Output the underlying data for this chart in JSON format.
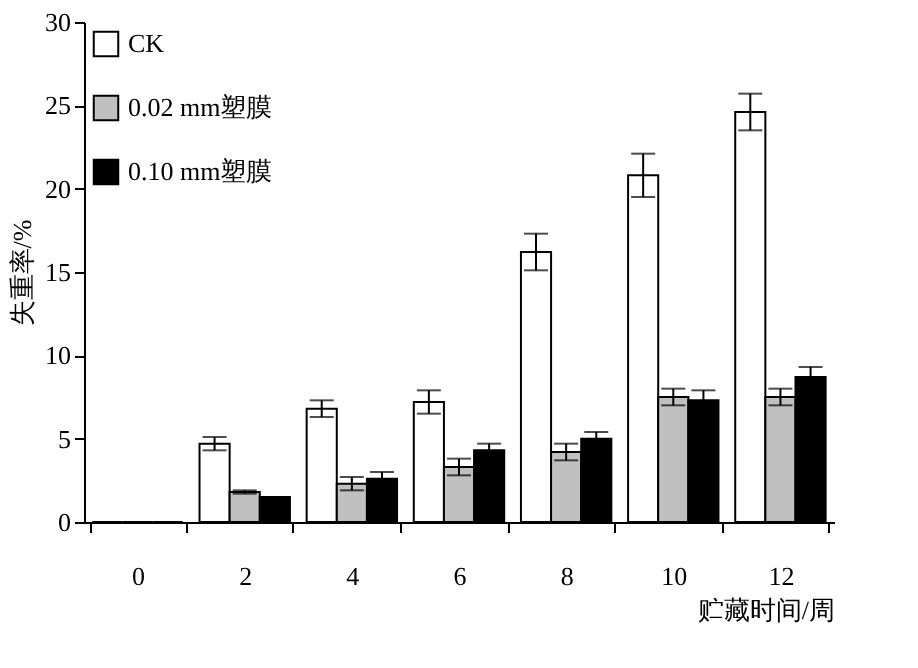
{
  "chart_data": {
    "type": "bar",
    "xlabel": "贮藏时间/周",
    "ylabel": "失重率/%",
    "categories": [
      "0",
      "2",
      "4",
      "6",
      "8",
      "10",
      "12"
    ],
    "series": [
      {
        "name": "CK",
        "color": "#ffffff",
        "values": [
          0,
          4.7,
          6.8,
          7.2,
          16.2,
          20.8,
          24.6
        ],
        "errors": [
          null,
          0.4,
          0.5,
          0.7,
          1.1,
          1.3,
          1.1
        ]
      },
      {
        "name": "0.02 mm塑膜",
        "color": "#c0c0c0",
        "values": [
          0,
          1.8,
          2.3,
          3.3,
          4.2,
          7.5,
          7.5
        ],
        "errors": [
          null,
          0.1,
          0.4,
          0.5,
          0.5,
          0.5,
          0.5
        ]
      },
      {
        "name": "0.10 mm塑膜",
        "color": "#000000",
        "values": [
          0,
          1.5,
          2.6,
          4.3,
          5.0,
          7.3,
          8.7
        ],
        "errors": [
          null,
          null,
          0.4,
          0.4,
          0.4,
          0.6,
          0.6
        ]
      }
    ],
    "ylim": [
      0,
      30
    ],
    "yticks": [
      0,
      5,
      10,
      15,
      20,
      25,
      30
    ],
    "grid": false,
    "legend": "top left"
  }
}
